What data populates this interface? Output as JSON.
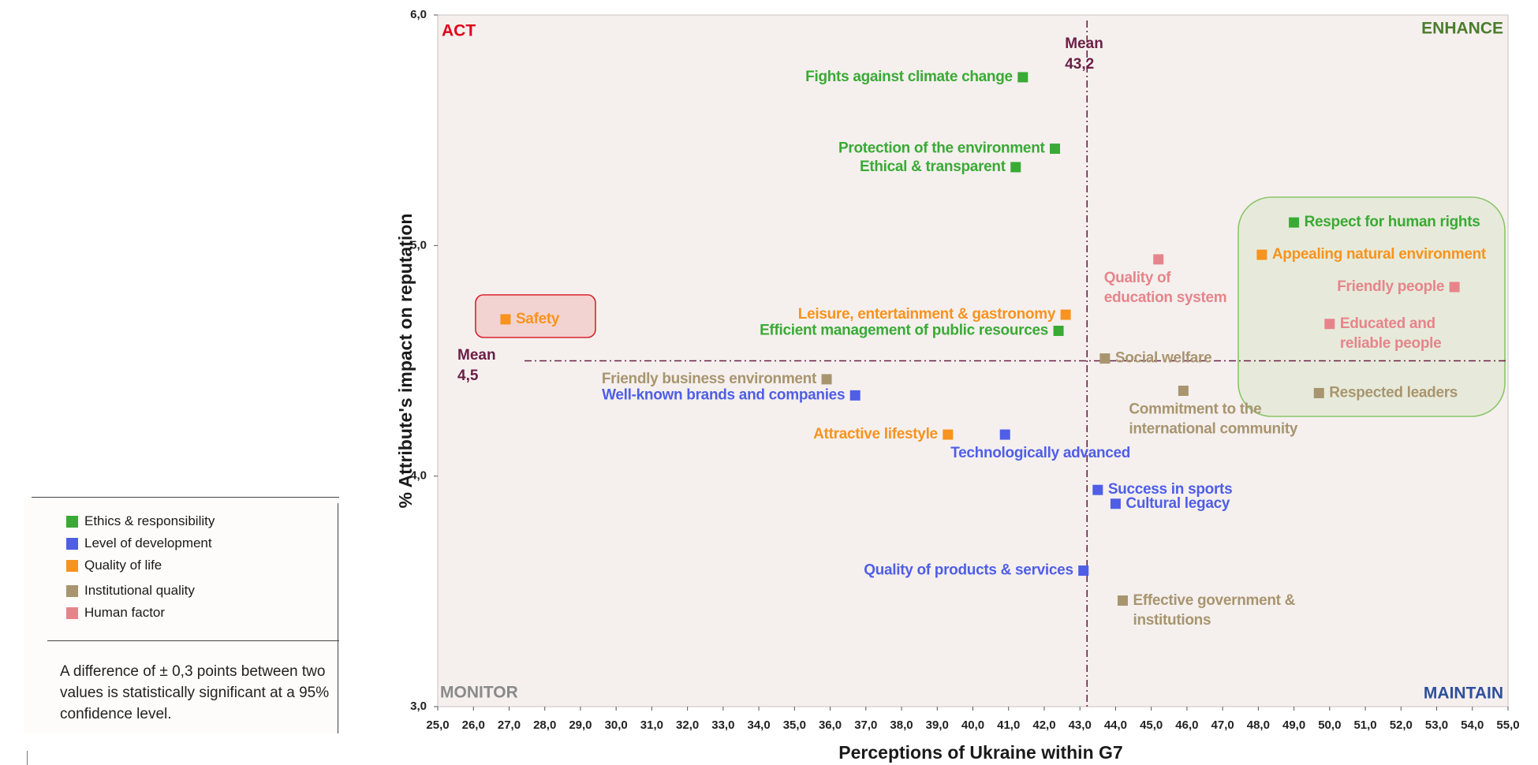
{
  "colors": {
    "ethics": "#3aaa35",
    "development": "#4f5ee6",
    "quality_of_life": "#f7931e",
    "institutional": "#a8956f",
    "human": "#e7848b",
    "mean_line": "#6b1e45",
    "act": "#e0001a",
    "enhance": "#4b7c2c",
    "monitor": "#8a8a8a",
    "maintain": "#2e4f9c",
    "plot_bg": "#f5f0ee"
  },
  "chart_data": {
    "type": "scatter",
    "xlabel": "Perceptions of Ukraine within G7",
    "ylabel": "% Attribute's impact on reputation",
    "xlim": [
      25,
      55
    ],
    "ylim": [
      3.0,
      6.0
    ],
    "x_ticks": [
      "25,0",
      "26,0",
      "27,0",
      "28,0",
      "29,0",
      "30,0",
      "31,0",
      "32,0",
      "33,0",
      "34,0",
      "35,0",
      "36,0",
      "37,0",
      "38,0",
      "39,0",
      "40,0",
      "41,0",
      "42,0",
      "43,0",
      "44,0",
      "45,0",
      "46,0",
      "47,0",
      "48,0",
      "49,0",
      "50,0",
      "51,0",
      "52,0",
      "53,0",
      "54,0",
      "55,0"
    ],
    "y_ticks": [
      {
        "value": 3.0,
        "label": "3,0"
      },
      {
        "value": 4.0,
        "label": "4,0"
      },
      {
        "value": 5.0,
        "label": "5,0"
      },
      {
        "value": 6.0,
        "label": "6,0"
      }
    ],
    "mean_x": {
      "value": 43.2,
      "label_line1": "Mean",
      "label_line2": "43,2"
    },
    "mean_y": {
      "value": 4.5,
      "label_line1": "Mean",
      "label_line2": "4,5"
    },
    "quadrants": {
      "top_left": "ACT",
      "top_right": "ENHANCE",
      "bottom_left": "MONITOR",
      "bottom_right": "MAINTAIN"
    },
    "categories": [
      {
        "key": "ethics",
        "name": "Ethics & responsibility"
      },
      {
        "key": "development",
        "name": "Level of development"
      },
      {
        "key": "quality_of_life",
        "name": "Quality of life"
      },
      {
        "key": "institutional",
        "name": "Institutional quality"
      },
      {
        "key": "human",
        "name": "Human factor"
      }
    ],
    "points": [
      {
        "name": "Fights against climate change",
        "lines": [
          "Fights against climate change"
        ],
        "category": "ethics",
        "x": 41.4,
        "y": 5.73,
        "label_pos": "left"
      },
      {
        "name": "Protection of the environment",
        "lines": [
          "Protection of the environment"
        ],
        "category": "ethics",
        "x": 42.3,
        "y": 5.42,
        "label_pos": "left"
      },
      {
        "name": "Ethical & transparent",
        "lines": [
          "Ethical & transparent"
        ],
        "category": "ethics",
        "x": 41.2,
        "y": 5.34,
        "label_pos": "left"
      },
      {
        "name": "Respect for human rights",
        "lines": [
          "Respect for human rights"
        ],
        "category": "ethics",
        "x": 49.0,
        "y": 5.1,
        "label_pos": "right"
      },
      {
        "name": "Appealing natural environment",
        "lines": [
          "Appealing natural environment"
        ],
        "category": "quality_of_life",
        "x": 48.1,
        "y": 4.96,
        "label_pos": "right"
      },
      {
        "name": "Quality of education system",
        "lines": [
          "Quality of",
          "education system"
        ],
        "category": "human",
        "x": 45.2,
        "y": 4.94,
        "label_pos": "below"
      },
      {
        "name": "Friendly people",
        "lines": [
          "Friendly people"
        ],
        "category": "human",
        "x": 53.5,
        "y": 4.82,
        "label_pos": "left"
      },
      {
        "name": "Educated and reliable people",
        "lines": [
          "Educated and",
          "reliable people"
        ],
        "category": "human",
        "x": 50.0,
        "y": 4.66,
        "label_pos": "right"
      },
      {
        "name": "Safety",
        "lines": [
          "Safety"
        ],
        "category": "quality_of_life",
        "x": 26.9,
        "y": 4.68,
        "label_pos": "right",
        "highlight": "act"
      },
      {
        "name": "Leisure, entertainment & gastronomy",
        "lines": [
          "Leisure, entertainment & gastronomy"
        ],
        "category": "quality_of_life",
        "x": 42.6,
        "y": 4.7,
        "label_pos": "left"
      },
      {
        "name": "Efficient management of public resources",
        "lines": [
          "Efficient management of public resources"
        ],
        "category": "ethics",
        "x": 42.4,
        "y": 4.63,
        "label_pos": "left"
      },
      {
        "name": "Social welfare",
        "lines": [
          "Social welfare"
        ],
        "category": "institutional",
        "x": 43.7,
        "y": 4.51,
        "label_pos": "right"
      },
      {
        "name": "Friendly business environment",
        "lines": [
          "Friendly business environment"
        ],
        "category": "institutional",
        "x": 35.9,
        "y": 4.42,
        "label_pos": "left"
      },
      {
        "name": "Well-known brands and companies",
        "lines": [
          "Well-known brands and companies"
        ],
        "category": "development",
        "x": 36.7,
        "y": 4.35,
        "label_pos": "left"
      },
      {
        "name": "Commitment to the international community",
        "lines": [
          "Commitment to the",
          "international community"
        ],
        "category": "institutional",
        "x": 45.9,
        "y": 4.37,
        "label_pos": "below"
      },
      {
        "name": "Respected leaders",
        "lines": [
          "Respected leaders"
        ],
        "category": "institutional",
        "x": 49.7,
        "y": 4.36,
        "label_pos": "right"
      },
      {
        "name": "Attractive lifestyle",
        "lines": [
          "Attractive lifestyle"
        ],
        "category": "quality_of_life",
        "x": 39.3,
        "y": 4.18,
        "label_pos": "left"
      },
      {
        "name": "Technologically advanced",
        "lines": [
          "Technologically advanced"
        ],
        "category": "development",
        "x": 40.9,
        "y": 4.18,
        "label_pos": "below"
      },
      {
        "name": "Success in sports",
        "lines": [
          "Success in sports"
        ],
        "category": "development",
        "x": 43.5,
        "y": 3.94,
        "label_pos": "right"
      },
      {
        "name": "Cultural legacy",
        "lines": [
          "Cultural legacy"
        ],
        "category": "development",
        "x": 44.0,
        "y": 3.88,
        "label_pos": "right"
      },
      {
        "name": "Quality of products & services",
        "lines": [
          "Quality of products & services"
        ],
        "category": "development",
        "x": 43.1,
        "y": 3.59,
        "label_pos": "left"
      },
      {
        "name": "Effective government & institutions",
        "lines": [
          "Effective government &",
          "institutions"
        ],
        "category": "institutional",
        "x": 44.2,
        "y": 3.46,
        "label_pos": "right"
      }
    ]
  },
  "legend": {
    "items": [
      {
        "label": "Ethics & responsibility"
      },
      {
        "label": "Level of development"
      },
      {
        "label": "Quality of life"
      },
      {
        "label": "Institutional quality"
      },
      {
        "label": "Human factor"
      }
    ],
    "note": "A difference of ± 0,3 points between two values is statistically significant at a 95% confidence level."
  }
}
